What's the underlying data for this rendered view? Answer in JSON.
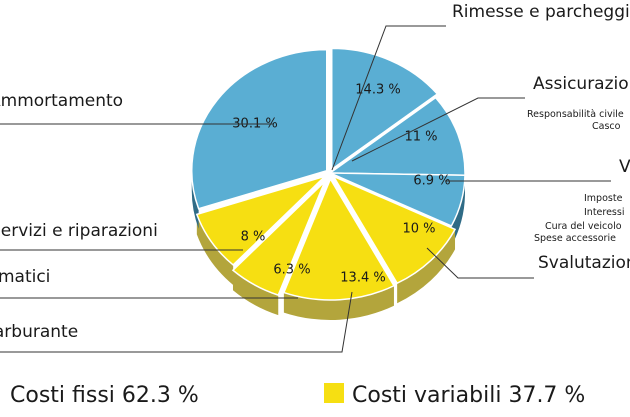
{
  "chart_data": {
    "type": "pie",
    "title": "",
    "slices": [
      {
        "label": "Rimesse e parcheggi",
        "percent_label": "14.3 %",
        "value": 14.3,
        "group": "fixed",
        "details": []
      },
      {
        "label": "Assicurazione",
        "percent_label": "11 %",
        "value": 11.0,
        "group": "fixed",
        "details": [
          "Responsabilità civile",
          "Casco"
        ]
      },
      {
        "label": "Varie",
        "percent_label": "6.9 %",
        "value": 6.9,
        "group": "fixed",
        "details": [
          "Imposte",
          "Interessi",
          "Cura del veicolo",
          "Spese accessorie"
        ]
      },
      {
        "label": "Svalutazione",
        "percent_label": "10 %",
        "value": 10.0,
        "group": "variable",
        "details": []
      },
      {
        "label": "Carburante",
        "percent_label": "13.4 %",
        "value": 13.4,
        "group": "variable",
        "details": []
      },
      {
        "label": "Pneumatici",
        "percent_label": "6.3 %",
        "value": 6.3,
        "group": "variable",
        "details": []
      },
      {
        "label": "Servizi e riparazioni",
        "percent_label": "8 %",
        "value": 8.0,
        "group": "variable",
        "details": []
      },
      {
        "label": "Ammortamento",
        "percent_label": "30.1 %",
        "value": 30.1,
        "group": "fixed",
        "details": []
      }
    ],
    "legend": [
      {
        "label": "Costi fissi 62.3 %",
        "group": "fixed"
      },
      {
        "label": "Costi variabili 37.7 %",
        "group": "variable"
      }
    ],
    "legend_position": "bottom",
    "colors": {
      "fixed_top": "#5aaed3",
      "fixed_side": "#2f6b86",
      "variable_top": "#f6df12",
      "variable_side": "#b3a53c",
      "outline": "#ffffff"
    }
  }
}
